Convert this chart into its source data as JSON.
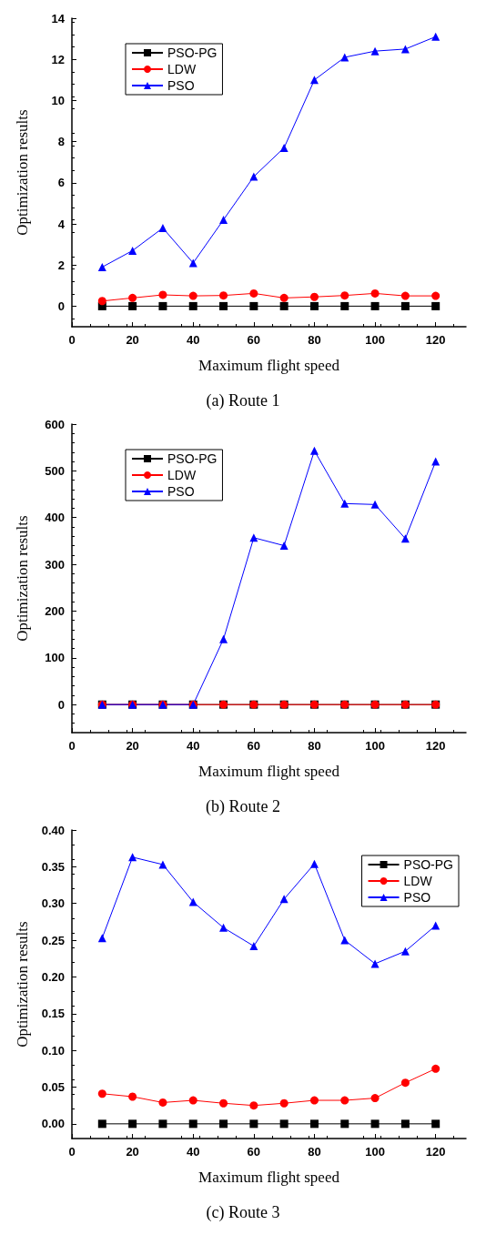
{
  "chart_data": [
    {
      "type": "line",
      "xlabel": "Maximum flight speed",
      "ylabel": "Optimization results",
      "annotations": [
        "(a) Route 1"
      ],
      "x": [
        10,
        20,
        30,
        40,
        50,
        60,
        70,
        80,
        90,
        100,
        110,
        120
      ],
      "xlim": [
        0,
        130
      ],
      "xticks": [
        0,
        20,
        40,
        60,
        80,
        100,
        120
      ],
      "ylim": [
        -1,
        14
      ],
      "yticks": [
        0,
        2,
        4,
        6,
        8,
        10,
        12,
        14
      ],
      "grid": false,
      "legend": "top left",
      "series": [
        {
          "name": "PSO-PG",
          "color": "#000000",
          "marker": "square",
          "values": [
            0,
            0,
            0,
            0,
            0,
            0,
            0,
            0,
            0,
            0,
            0,
            0
          ]
        },
        {
          "name": "LDW",
          "color": "#ff0000",
          "marker": "circle",
          "values": [
            0.25,
            0.4,
            0.55,
            0.5,
            0.52,
            0.62,
            0.4,
            0.45,
            0.52,
            0.62,
            0.5,
            0.5
          ]
        },
        {
          "name": "PSO",
          "color": "#0000ff",
          "marker": "triangle",
          "values": [
            1.9,
            2.7,
            3.8,
            2.1,
            4.2,
            6.3,
            7.7,
            11.0,
            12.1,
            12.4,
            12.5,
            13.1
          ]
        }
      ]
    },
    {
      "type": "line",
      "xlabel": "Maximum flight speed",
      "ylabel": "Optimization results",
      "annotations": [
        "(b) Route 2"
      ],
      "x": [
        10,
        20,
        30,
        40,
        50,
        60,
        70,
        80,
        90,
        100,
        110,
        120
      ],
      "xlim": [
        0,
        130
      ],
      "xticks": [
        0,
        20,
        40,
        60,
        80,
        100,
        120
      ],
      "ylim": [
        -60,
        600
      ],
      "yticks": [
        0,
        100,
        200,
        300,
        400,
        500,
        600
      ],
      "grid": false,
      "legend": "top left",
      "series": [
        {
          "name": "PSO-PG",
          "color": "#000000",
          "marker": "square",
          "values": [
            0,
            0,
            0,
            0,
            0,
            0,
            0,
            0,
            0,
            0,
            0,
            0
          ]
        },
        {
          "name": "LDW",
          "color": "#ff0000",
          "marker": "circle",
          "values": [
            0,
            0,
            0,
            0,
            0,
            0,
            0,
            0,
            0,
            0,
            0,
            0
          ]
        },
        {
          "name": "PSO",
          "color": "#0000ff",
          "marker": "triangle",
          "values": [
            0,
            0,
            0,
            0,
            140,
            357,
            340,
            543,
            430,
            428,
            355,
            520
          ]
        }
      ]
    },
    {
      "type": "line",
      "xlabel": "Maximum flight speed",
      "ylabel": "Optimization results",
      "annotations": [
        "(c) Route 3"
      ],
      "x": [
        10,
        20,
        30,
        40,
        50,
        60,
        70,
        80,
        90,
        100,
        110,
        120
      ],
      "xlim": [
        0,
        130
      ],
      "xticks": [
        0,
        20,
        40,
        60,
        80,
        100,
        120
      ],
      "ylim": [
        -0.02,
        0.4
      ],
      "yticks": [
        {
          "value": 0,
          "label": "0.00"
        },
        {
          "value": 0.05,
          "label": "0.05"
        },
        {
          "value": 0.1,
          "label": "0.10"
        },
        {
          "value": 0.15,
          "label": "0.15"
        },
        {
          "value": 0.2,
          "label": "0.20"
        },
        {
          "value": 0.25,
          "label": "0.25"
        },
        {
          "value": 0.3,
          "label": "0.30"
        },
        {
          "value": 0.35,
          "label": "0.35"
        },
        {
          "value": 0.4,
          "label": "0.40"
        }
      ],
      "grid": false,
      "legend": "top right",
      "series": [
        {
          "name": "PSO-PG",
          "color": "#000000",
          "marker": "square",
          "values": [
            0,
            0,
            0,
            0,
            0,
            0,
            0,
            0,
            0,
            0,
            0,
            0
          ]
        },
        {
          "name": "LDW",
          "color": "#ff0000",
          "marker": "circle",
          "values": [
            0.041,
            0.037,
            0.029,
            0.032,
            0.028,
            0.025,
            0.028,
            0.032,
            0.032,
            0.035,
            0.056,
            0.075
          ]
        },
        {
          "name": "PSO",
          "color": "#0000ff",
          "marker": "triangle",
          "values": [
            0.253,
            0.363,
            0.353,
            0.302,
            0.267,
            0.242,
            0.306,
            0.354,
            0.25,
            0.218,
            0.235,
            0.27
          ]
        }
      ]
    }
  ]
}
